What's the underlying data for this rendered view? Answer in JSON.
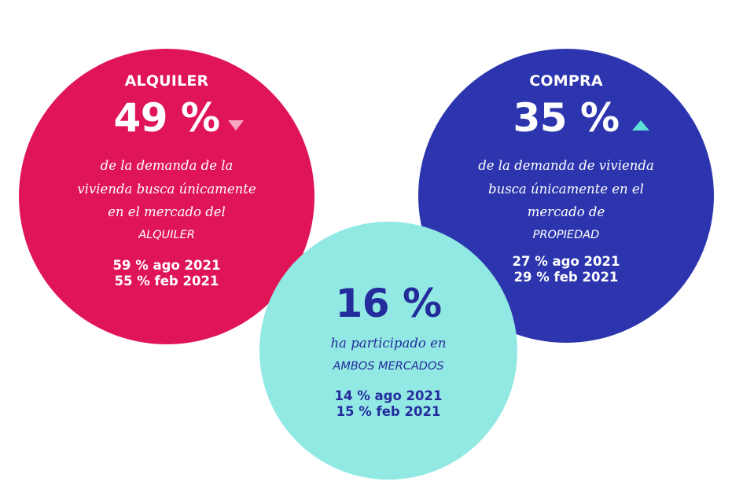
{
  "rent": {
    "label": "ALQUILER",
    "percent": "49 %",
    "trend_icon": "triangle-down-icon",
    "desc_lines": [
      "de la demanda de la",
      "vivienda busca únicamente",
      "en el mercado del",
      "ALQUILER"
    ],
    "history": [
      "59 % ago 2021",
      "55 % feb 2021"
    ],
    "color": "#e01558",
    "trend_color": "#f7a6c1"
  },
  "buy": {
    "label": "COMPRA",
    "percent": "35 %",
    "trend_icon": "triangle-up-icon",
    "desc_lines": [
      "de la demanda de vivienda",
      "busca únicamente en el",
      "mercado de",
      "PROPIEDAD"
    ],
    "history": [
      "27 % ago 2021",
      "29 % feb 2021"
    ],
    "color": "#2c35ad",
    "trend_color": "#5fdfd8"
  },
  "both": {
    "percent": "16 %",
    "desc_lines": [
      "ha participado en",
      "AMBOS MERCADOS"
    ],
    "history": [
      "14 % ago 2021",
      "15 % feb 2021"
    ],
    "color": "#92e8e3",
    "text_color": "#242c9c"
  }
}
